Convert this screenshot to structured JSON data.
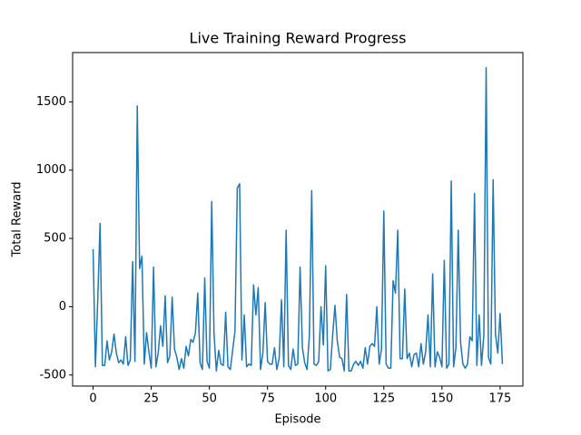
{
  "chart_data": {
    "type": "line",
    "title": "Live Training Reward Progress",
    "x_label": "Episode",
    "y_label": "Total Reward",
    "x": [
      0,
      1,
      2,
      3,
      4,
      5,
      6,
      7,
      8,
      9,
      10,
      11,
      12,
      13,
      14,
      15,
      16,
      17,
      18,
      19,
      20,
      21,
      22,
      23,
      24,
      25,
      26,
      27,
      28,
      29,
      30,
      31,
      32,
      33,
      34,
      35,
      36,
      37,
      38,
      39,
      40,
      41,
      42,
      43,
      44,
      45,
      46,
      47,
      48,
      49,
      50,
      51,
      52,
      53,
      54,
      55,
      56,
      57,
      58,
      59,
      60,
      61,
      62,
      63,
      64,
      65,
      66,
      67,
      68,
      69,
      70,
      71,
      72,
      73,
      74,
      75,
      76,
      77,
      78,
      79,
      80,
      81,
      82,
      83,
      84,
      85,
      86,
      87,
      88,
      89,
      90,
      91,
      92,
      93,
      94,
      95,
      96,
      97,
      98,
      99,
      100,
      101,
      102,
      103,
      104,
      105,
      106,
      107,
      108,
      109,
      110,
      111,
      112,
      113,
      114,
      115,
      116,
      117,
      118,
      119,
      120,
      121,
      122,
      123,
      124,
      125,
      126,
      127,
      128,
      129,
      130,
      131,
      132,
      133,
      134,
      135,
      136,
      137,
      138,
      139,
      140,
      141,
      142,
      143,
      144,
      145,
      146,
      147,
      148,
      149,
      150,
      151,
      152,
      153,
      154,
      155,
      156,
      157,
      158,
      159,
      160,
      161,
      162,
      163,
      164,
      165,
      166,
      167,
      168,
      169,
      170,
      171,
      172,
      173,
      174,
      175,
      176
    ],
    "series": [
      {
        "name": "Total Reward",
        "color": "#1f77b4",
        "values": [
          420,
          -440,
          50,
          610,
          -430,
          -430,
          -250,
          -390,
          -330,
          -200,
          -340,
          -410,
          -390,
          -420,
          -220,
          -430,
          -390,
          330,
          -400,
          1470,
          280,
          370,
          -420,
          -190,
          -330,
          -450,
          290,
          -440,
          -340,
          -140,
          -290,
          80,
          -410,
          -360,
          70,
          -310,
          -370,
          -460,
          -380,
          -450,
          -290,
          -360,
          -240,
          -260,
          -190,
          100,
          -410,
          -460,
          210,
          -400,
          -450,
          770,
          -200,
          -470,
          -320,
          -420,
          -430,
          -40,
          -440,
          -460,
          -320,
          -180,
          870,
          900,
          -390,
          -60,
          -440,
          -420,
          -430,
          160,
          -60,
          140,
          -460,
          -340,
          30,
          -400,
          -420,
          -420,
          -300,
          -460,
          -380,
          50,
          -440,
          560,
          -430,
          -460,
          -310,
          -430,
          -420,
          290,
          -300,
          -410,
          -460,
          -210,
          850,
          -420,
          -430,
          -400,
          0,
          -280,
          300,
          -470,
          -460,
          -210,
          10,
          -250,
          -370,
          -380,
          -470,
          90,
          -470,
          -470,
          -420,
          -400,
          -430,
          -400,
          -450,
          -300,
          -420,
          -290,
          -270,
          -290,
          0,
          -420,
          -310,
          700,
          -420,
          -450,
          -450,
          190,
          100,
          560,
          -380,
          -380,
          130,
          -380,
          -340,
          -440,
          -350,
          -340,
          -440,
          -270,
          -420,
          -330,
          -60,
          -440,
          240,
          -440,
          -330,
          -370,
          -440,
          340,
          -450,
          -420,
          920,
          -440,
          -300,
          560,
          -260,
          -420,
          -450,
          -420,
          -220,
          -250,
          830,
          -430,
          -60,
          -430,
          -210,
          1750,
          -370,
          -420,
          930,
          -200,
          -340,
          -50,
          -420
        ]
      }
    ],
    "xlim": [
      -8.8,
      184.8
    ],
    "ylim": [
      -581,
      1861
    ],
    "xticks": [
      0,
      25,
      50,
      75,
      100,
      125,
      150,
      175
    ],
    "yticks": [
      -500,
      0,
      500,
      1000,
      1500
    ]
  }
}
